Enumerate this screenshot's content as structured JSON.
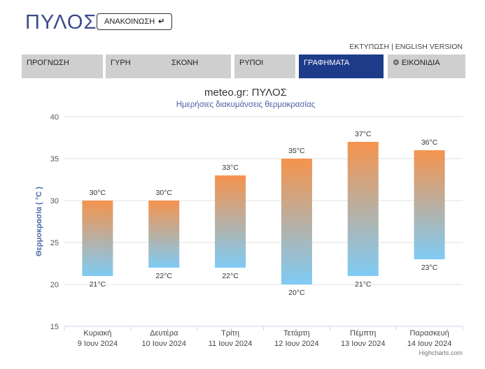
{
  "header": {
    "city": "ΠΥΛΟΣ",
    "announce_label": "ΑΝΑΚΟΙΝΩΣΗ",
    "announce_icon": "return-arrow-icon",
    "print_label": "ΕΚΤΥΠΩΣΗ",
    "separator": "|",
    "english_label": "ENGLISH VERSION"
  },
  "tabs": [
    {
      "label": "ΠΡΟΓΝΩΣΗ",
      "active": false
    },
    {
      "label": "ΓΥΡΗ",
      "active": false
    },
    {
      "label": "ΣΚΟΝΗ",
      "active": false
    },
    {
      "label": "ΡΥΠΟΙ",
      "active": false
    },
    {
      "label": "ΓΡΑΦΗΜΑΤΑ",
      "active": true
    },
    {
      "label": "ΕΙΚΟΝΙΔΙΑ",
      "active": false,
      "icon": "gear-icon"
    }
  ],
  "colors": {
    "brand": "#3b4a8c",
    "active_tab": "#1e3b8a",
    "bar_top": "#f5934d",
    "bar_bottom": "#7ecbf5"
  },
  "chart_data": {
    "type": "bar",
    "subtype": "columnrange",
    "title": "meteo.gr: ΠΥΛΟΣ",
    "subtitle": "Ημερήσιες διακυμάνσεις θερμοκρασίας",
    "ylabel": "Θερμοκρασία ( °C )",
    "ylim": [
      15,
      40
    ],
    "yticks": [
      15,
      20,
      25,
      30,
      35,
      40
    ],
    "grid": true,
    "unit": "°C",
    "categories": [
      {
        "day": "Κυριακή",
        "date": "9 Ιουν 2024"
      },
      {
        "day": "Δευτέρα",
        "date": "10 Ιουν 2024"
      },
      {
        "day": "Τρίτη",
        "date": "11 Ιουν 2024"
      },
      {
        "day": "Τετάρτη",
        "date": "12 Ιουν 2024"
      },
      {
        "day": "Πέμπτη",
        "date": "13 Ιουν 2024"
      },
      {
        "day": "Παρασκευή",
        "date": "14 Ιουν 2024"
      }
    ],
    "low": [
      21,
      22,
      22,
      20,
      21,
      23
    ],
    "high": [
      30,
      30,
      33,
      35,
      37,
      36
    ],
    "credits": "Highcharts.com"
  }
}
